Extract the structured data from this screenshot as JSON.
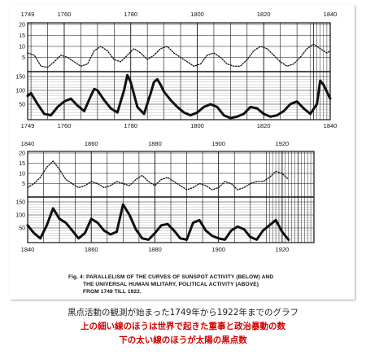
{
  "colors": {
    "ink": "#111111",
    "caption_red": "#d40000",
    "caption_dark": "#222222"
  },
  "figure_caption": {
    "line1": "Fig. 4: PARALLELISM OF THE CURVES OF SUNSPOT ACTIVITY (BELOW) AND",
    "line2": "THE UNIVERSAL HUMAN MILITARY, POLITICAL ACTIVITY (ABOVE)",
    "line3": "FROM 1749 TILL 1922."
  },
  "japanese_caption": {
    "line1": "黒点活動の観測が始まった1749年から1922年までのグラフ",
    "line2": "上の細い線のほうは世界で起きた重事と政治暴動の数",
    "line3": "下の太い線のほうが太陽の黒点数"
  },
  "chart_data": [
    {
      "type": "line",
      "panel": "top",
      "x_range": [
        1749,
        1840
      ],
      "x_tick_labels": [
        "1749",
        "1760",
        "1780",
        "1800",
        "1820",
        "1840"
      ],
      "x_ticks": [
        1749,
        1760,
        1780,
        1800,
        1820,
        1840
      ],
      "upper": {
        "ylim": [
          0,
          20
        ],
        "y_tick_labels": [
          "5",
          "10",
          "15",
          "20"
        ],
        "series": [
          {
            "style": "dotted",
            "x": [
              1749,
              1751,
              1753,
              1755,
              1757,
              1759,
              1761,
              1763,
              1765,
              1767,
              1769,
              1771,
              1773,
              1775,
              1777,
              1779,
              1781,
              1783,
              1785,
              1787,
              1789,
              1791,
              1793,
              1795,
              1797,
              1799,
              1801,
              1803,
              1805,
              1807,
              1809,
              1811,
              1813,
              1815,
              1817,
              1819,
              1821,
              1823,
              1825,
              1827,
              1829,
              1831,
              1833,
              1835,
              1837,
              1839,
              1840
            ],
            "y": [
              7,
              6,
              1,
              0.5,
              3,
              6,
              5,
              3,
              1,
              2,
              8,
              10,
              8,
              4,
              3,
              6,
              9,
              7,
              4,
              6,
              9,
              10,
              7,
              5,
              3,
              1,
              2,
              6,
              7,
              5,
              2,
              1,
              1,
              4,
              8,
              10,
              9,
              6,
              3,
              1,
              2,
              5,
              9,
              11,
              9,
              7,
              8
            ]
          }
        ]
      },
      "lower": {
        "ylim": [
          0,
          150
        ],
        "y_tick_labels": [
          "50",
          "100",
          "150"
        ],
        "series": [
          {
            "style": "solid-thick",
            "x": [
              1749,
              1750,
              1752,
              1754,
              1756,
              1758,
              1760,
              1762,
              1764,
              1766,
              1768,
              1769,
              1770,
              1772,
              1774,
              1776,
              1778,
              1779,
              1780,
              1782,
              1784,
              1786,
              1787,
              1788,
              1789,
              1790,
              1792,
              1794,
              1796,
              1798,
              1800,
              1802,
              1804,
              1806,
              1808,
              1810,
              1812,
              1814,
              1816,
              1818,
              1820,
              1822,
              1824,
              1826,
              1828,
              1830,
              1832,
              1834,
              1836,
              1837,
              1838,
              1840
            ],
            "y": [
              80,
              90,
              50,
              15,
              10,
              40,
              60,
              70,
              45,
              25,
              80,
              105,
              100,
              65,
              35,
              20,
              100,
              155,
              130,
              40,
              15,
              90,
              130,
              140,
              120,
              95,
              65,
              40,
              20,
              10,
              20,
              40,
              50,
              40,
              10,
              0,
              5,
              15,
              40,
              35,
              15,
              5,
              10,
              25,
              50,
              60,
              35,
              15,
              50,
              135,
              120,
              70
            ]
          }
        ]
      }
    },
    {
      "type": "line",
      "panel": "bottom",
      "x_range": [
        1840,
        1930
      ],
      "x_tick_labels": [
        "1840",
        "1860",
        "1880",
        "1900",
        "1920"
      ],
      "x_ticks": [
        1840,
        1860,
        1880,
        1900,
        1920
      ],
      "upper": {
        "ylim": [
          0,
          20
        ],
        "y_tick_labels": [
          "5",
          "10",
          "15",
          "20"
        ],
        "series": [
          {
            "style": "dotted",
            "x": [
              1840,
              1842,
              1844,
              1846,
              1848,
              1850,
              1852,
              1854,
              1856,
              1858,
              1860,
              1862,
              1864,
              1866,
              1868,
              1870,
              1872,
              1874,
              1876,
              1878,
              1880,
              1882,
              1884,
              1886,
              1888,
              1890,
              1892,
              1894,
              1896,
              1898,
              1900,
              1902,
              1904,
              1906,
              1908,
              1910,
              1912,
              1914,
              1916,
              1918,
              1920,
              1922
            ],
            "y": [
              3,
              5,
              8,
              13,
              16,
              12,
              7,
              5,
              3,
              4,
              6,
              5,
              3,
              4,
              6,
              5,
              4,
              7,
              9,
              6,
              4,
              7,
              8,
              6,
              4,
              2,
              3,
              5,
              4,
              2,
              3,
              6,
              5,
              2,
              3,
              5,
              6,
              6,
              8,
              11,
              10,
              7
            ]
          }
        ]
      },
      "lower": {
        "ylim": [
          0,
          150
        ],
        "y_tick_labels": [
          "50",
          "100",
          "150"
        ],
        "series": [
          {
            "style": "solid-thick",
            "x": [
              1840,
              1842,
              1844,
              1846,
              1848,
              1850,
              1852,
              1854,
              1856,
              1858,
              1860,
              1862,
              1864,
              1866,
              1868,
              1870,
              1872,
              1874,
              1876,
              1878,
              1880,
              1882,
              1884,
              1886,
              1888,
              1890,
              1892,
              1894,
              1896,
              1898,
              1900,
              1902,
              1904,
              1906,
              1908,
              1910,
              1912,
              1914,
              1916,
              1918,
              1920,
              1922
            ],
            "y": [
              60,
              30,
              10,
              60,
              125,
              85,
              70,
              40,
              10,
              30,
              85,
              70,
              40,
              25,
              35,
              140,
              100,
              45,
              10,
              5,
              30,
              60,
              65,
              40,
              10,
              5,
              70,
              80,
              40,
              20,
              10,
              5,
              40,
              55,
              45,
              15,
              5,
              40,
              60,
              80,
              35,
              5
            ]
          }
        ]
      }
    }
  ]
}
